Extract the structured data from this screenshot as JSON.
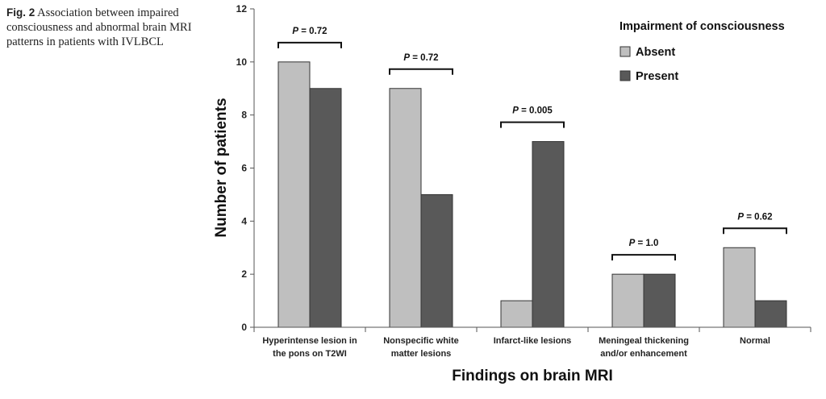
{
  "caption": {
    "label": "Fig. 2",
    "text": "Association between impaired consciousness and abnormal brain MRI patterns in patients with IVLBCL"
  },
  "chart_data": {
    "type": "bar",
    "title": "",
    "xlabel": "Findings on brain MRI",
    "ylabel": "Number of patients",
    "ylim": [
      0,
      12
    ],
    "yticks": [
      0,
      2,
      4,
      6,
      8,
      10,
      12
    ],
    "grid": false,
    "legend": {
      "title": "Impairment of consciousness",
      "position": "top-right"
    },
    "categories": [
      [
        "Hyperintense lesion in",
        "the pons on T2WI"
      ],
      [
        "Nonspecific white",
        "matter lesions"
      ],
      [
        "Infarct-like lesions"
      ],
      [
        "Meningeal thickening",
        "and/or enhancement"
      ],
      [
        "Normal"
      ]
    ],
    "series": [
      {
        "name": "Absent",
        "values": [
          10,
          9,
          1,
          2,
          3
        ],
        "color": "#bfbfbf"
      },
      {
        "name": "Present",
        "values": [
          9,
          5,
          7,
          2,
          1
        ],
        "color": "#595959"
      }
    ],
    "annotations": [
      "P = 0.72",
      "P = 0.72",
      "P = 0.005",
      "P = 1.0",
      "P = 0.62"
    ]
  }
}
